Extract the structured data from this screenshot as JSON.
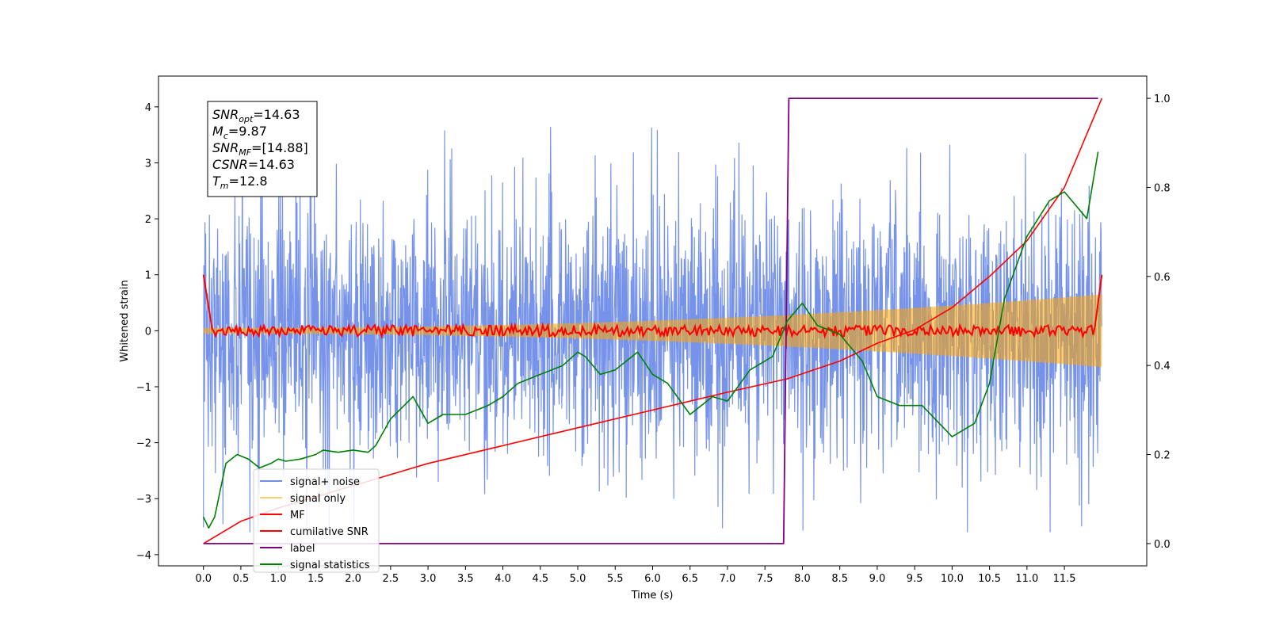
{
  "chart_data": {
    "type": "line",
    "title": "",
    "xlabel": "Time (s)",
    "ylabel": "Whitened strain",
    "y2label": "",
    "xlim": [
      -0.6,
      12.6
    ],
    "ylim": [
      -4.2,
      4.55
    ],
    "y2lim": [
      -0.05,
      1.05
    ],
    "x_ticks": [
      "0.0",
      "0.5",
      "1.0",
      "1.5",
      "2.0",
      "2.5",
      "3.0",
      "3.5",
      "4.0",
      "4.5",
      "5.0",
      "5.5",
      "6.0",
      "6.5",
      "7.0",
      "7.5",
      "8.0",
      "8.5",
      "9.0",
      "9.5",
      "10.0",
      "10.5",
      "11.0",
      "11.5"
    ],
    "y_ticks": [
      "4",
      "3",
      "2",
      "1",
      "0",
      "−1",
      "−2",
      "−3",
      "−4"
    ],
    "y2_ticks": [
      "1.0",
      "0.8",
      "0.6",
      "0.4",
      "0.2",
      "0.0"
    ],
    "grid": false,
    "legend_position": "lower-left",
    "annotation": {
      "lines": [
        {
          "symbol": "SNR",
          "sub": "opt",
          "value": "=14.63"
        },
        {
          "symbol": "M",
          "sub": "c",
          "value": "=9.87"
        },
        {
          "symbol": "SNR",
          "sub": "MF",
          "value": "=[14.88]"
        },
        {
          "symbol": "CSNR",
          "sub": "",
          "value": "=14.63"
        },
        {
          "symbol": "T",
          "sub": "m",
          "value": "=12.8"
        }
      ]
    },
    "series": [
      {
        "name": "signal+ noise",
        "color": "#4169e1",
        "axis": "left",
        "style": "noise band approx. -2.3 to 2.3 with peaks to ±3.7",
        "envelope": 2.3
      },
      {
        "name": "signal only",
        "color": "#ffa500",
        "axis": "left",
        "style": "chirp with amplitude growing from 0.05 to 0.65",
        "amp_start": 0.05,
        "amp_end": 0.65
      },
      {
        "name": "MF",
        "color": "#ff0000",
        "axis": "left",
        "style": "matched filter near zero, spikes to 1.0 at both ends"
      },
      {
        "name": "cumilative SNR",
        "color": "#ff0000",
        "axis": "right",
        "x": [
          0.0,
          0.5,
          1.0,
          2.0,
          3.0,
          4.0,
          5.0,
          6.0,
          7.0,
          7.8,
          8.5,
          9.0,
          9.5,
          10.0,
          10.5,
          11.0,
          11.5,
          12.0
        ],
        "y": [
          0.0,
          0.05,
          0.08,
          0.13,
          0.18,
          0.22,
          0.26,
          0.3,
          0.34,
          0.37,
          0.41,
          0.45,
          0.48,
          0.53,
          0.6,
          0.68,
          0.8,
          1.0
        ]
      },
      {
        "name": "label",
        "color": "#800080",
        "axis": "right",
        "x": [
          0.0,
          7.75,
          7.82,
          11.95
        ],
        "y": [
          0.0,
          0.0,
          1.0,
          1.0
        ]
      },
      {
        "name": "signal statistics",
        "color": "#008000",
        "axis": "right",
        "x": [
          0.0,
          0.07,
          0.15,
          0.3,
          0.45,
          0.6,
          0.75,
          0.9,
          1.0,
          1.1,
          1.3,
          1.5,
          1.6,
          1.8,
          2.0,
          2.2,
          2.3,
          2.5,
          2.8,
          3.0,
          3.2,
          3.5,
          3.8,
          4.0,
          4.2,
          4.5,
          4.8,
          5.0,
          5.1,
          5.3,
          5.5,
          5.8,
          6.0,
          6.2,
          6.5,
          6.8,
          7.0,
          7.3,
          7.6,
          7.8,
          8.0,
          8.2,
          8.5,
          8.8,
          9.0,
          9.3,
          9.6,
          10.0,
          10.3,
          10.5,
          10.7,
          11.0,
          11.3,
          11.5,
          11.8,
          11.95
        ],
        "y": [
          0.06,
          0.035,
          0.06,
          0.18,
          0.2,
          0.19,
          0.17,
          0.18,
          0.19,
          0.185,
          0.19,
          0.2,
          0.21,
          0.205,
          0.21,
          0.205,
          0.22,
          0.28,
          0.33,
          0.27,
          0.29,
          0.29,
          0.31,
          0.33,
          0.36,
          0.38,
          0.4,
          0.43,
          0.42,
          0.38,
          0.39,
          0.43,
          0.38,
          0.36,
          0.29,
          0.33,
          0.32,
          0.39,
          0.42,
          0.5,
          0.54,
          0.49,
          0.47,
          0.41,
          0.33,
          0.31,
          0.31,
          0.24,
          0.27,
          0.36,
          0.55,
          0.69,
          0.77,
          0.79,
          0.73,
          0.88
        ]
      }
    ]
  }
}
